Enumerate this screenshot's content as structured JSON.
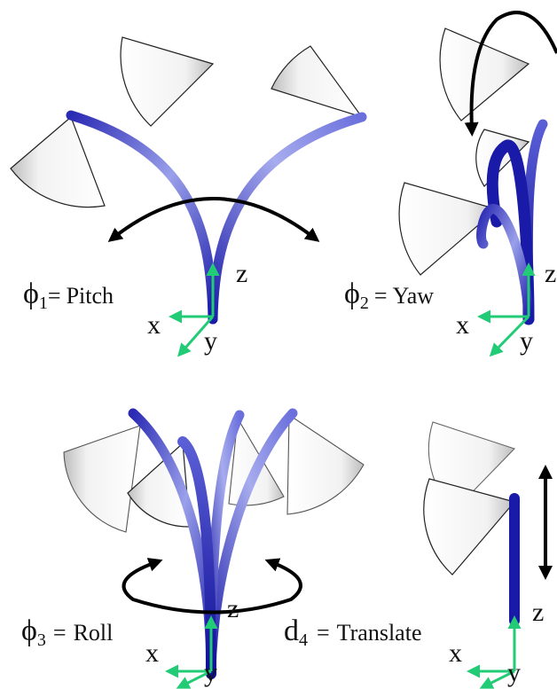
{
  "panels": {
    "pitch": {
      "symbol": "ϕ",
      "subscript": "1",
      "separator": "=",
      "name": "Pitch"
    },
    "yaw": {
      "symbol": "ϕ",
      "subscript": "2",
      "separator": "=",
      "name": "Yaw"
    },
    "roll": {
      "symbol": "ϕ",
      "subscript": "3",
      "separator": "=",
      "name": "Roll"
    },
    "translate": {
      "symbol": "d",
      "subscript": "4",
      "separator": "=",
      "name": "Translate"
    }
  },
  "axes": {
    "x": "x",
    "y": "y",
    "z": "z"
  },
  "colors": {
    "tube_dark": "#1a1aa8",
    "tube_light": "#b8bcf0",
    "frame_arrow": "#22cc77",
    "motion_arrow": "#000000",
    "fov_outline": "#222222"
  }
}
